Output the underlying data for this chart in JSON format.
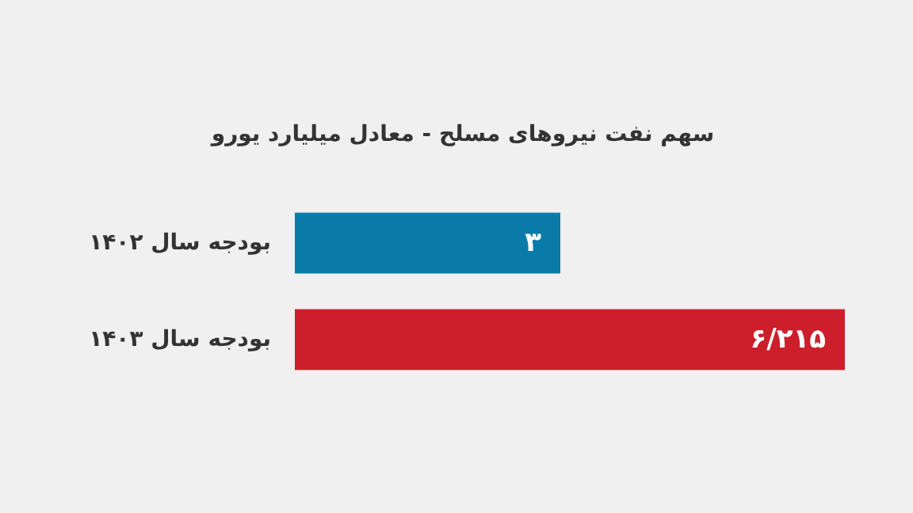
{
  "chart_data": {
    "type": "bar",
    "orientation": "horizontal",
    "title": "سهم نفت نیروهای مسلح - معادل میلیارد یورو",
    "categories": [
      "بودجه سال ۱۴۰۲",
      "بودجه سال ۱۴۰۳"
    ],
    "values": [
      3,
      6.215
    ],
    "colors": [
      "#0a7ba8",
      "#cc1f2b"
    ],
    "value_labels": [
      "۳",
      "۶/۲۱۵"
    ]
  }
}
